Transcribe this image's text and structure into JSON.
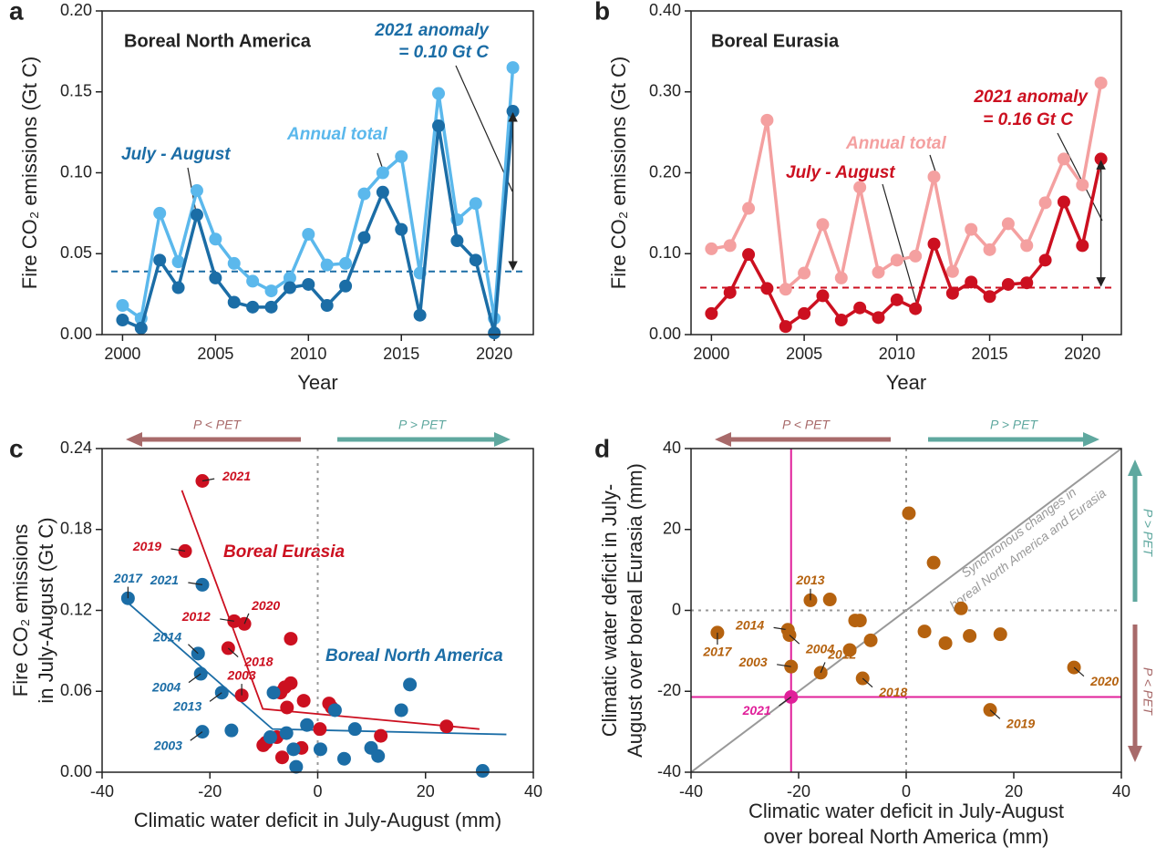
{
  "chart_data": [
    {
      "type": "line",
      "panel": "a",
      "title": "Boreal North America",
      "x": [
        2000,
        2001,
        2002,
        2003,
        2004,
        2005,
        2006,
        2007,
        2008,
        2009,
        2010,
        2011,
        2012,
        2013,
        2014,
        2015,
        2016,
        2017,
        2018,
        2019,
        2020,
        2021
      ],
      "xlim": [
        1998.9,
        2022.1
      ],
      "xticks": [
        2000,
        2005,
        2010,
        2015,
        2020
      ],
      "ylim": [
        0,
        0.2
      ],
      "yticks": [
        {
          "value": 0,
          "label": "0.00"
        },
        {
          "value": 0.05,
          "label": "0.05"
        },
        {
          "value": 0.1,
          "label": "0.10"
        },
        {
          "value": 0.15,
          "label": "0.15"
        },
        {
          "value": 0.2,
          "label": "0.20"
        }
      ],
      "xlabel": "Year",
      "ylabel": "Fire CO₂ emissions (Gt C)",
      "series": [
        {
          "name": "Annual total",
          "color": "#5bb8ec",
          "values": [
            0.018,
            0.01,
            0.075,
            0.045,
            0.089,
            0.059,
            0.044,
            0.033,
            0.027,
            0.035,
            0.062,
            0.043,
            0.044,
            0.087,
            0.1,
            0.11,
            0.038,
            0.149,
            0.071,
            0.081,
            0.01,
            0.165
          ]
        },
        {
          "name": "July - August",
          "color": "#1b6da6",
          "values": [
            0.009,
            0.004,
            0.046,
            0.029,
            0.074,
            0.035,
            0.02,
            0.017,
            0.017,
            0.029,
            0.031,
            0.018,
            0.03,
            0.06,
            0.088,
            0.065,
            0.012,
            0.129,
            0.058,
            0.046,
            0.001,
            0.138
          ]
        }
      ],
      "baseline": 0.039,
      "anomaly_label": [
        "2021 anomaly",
        "= 0.10 Gt C"
      ]
    },
    {
      "type": "line",
      "panel": "b",
      "title": "Boreal Eurasia",
      "x": [
        2000,
        2001,
        2002,
        2003,
        2004,
        2005,
        2006,
        2007,
        2008,
        2009,
        2010,
        2011,
        2012,
        2013,
        2014,
        2015,
        2016,
        2017,
        2018,
        2019,
        2020,
        2021
      ],
      "xlim": [
        1998.9,
        2022.1
      ],
      "xticks": [
        2000,
        2005,
        2010,
        2015,
        2020
      ],
      "ylim": [
        0,
        0.4
      ],
      "yticks": [
        {
          "value": 0,
          "label": "0.00"
        },
        {
          "value": 0.1,
          "label": "0.10"
        },
        {
          "value": 0.2,
          "label": "0.20"
        },
        {
          "value": 0.3,
          "label": "0.30"
        },
        {
          "value": 0.4,
          "label": "0.40"
        }
      ],
      "xlabel": "Year",
      "ylabel": "Fire CO₂ emissions (Gt C)",
      "series": [
        {
          "name": "Annual total",
          "color": "#f4a0a0",
          "values": [
            0.106,
            0.11,
            0.156,
            0.265,
            0.056,
            0.076,
            0.136,
            0.07,
            0.182,
            0.077,
            0.092,
            0.097,
            0.195,
            0.078,
            0.13,
            0.105,
            0.137,
            0.11,
            0.163,
            0.217,
            0.185,
            0.311
          ]
        },
        {
          "name": "July - August",
          "color": "#cc1020",
          "values": [
            0.026,
            0.052,
            0.099,
            0.057,
            0.01,
            0.026,
            0.048,
            0.018,
            0.033,
            0.021,
            0.043,
            0.032,
            0.112,
            0.051,
            0.065,
            0.047,
            0.062,
            0.064,
            0.092,
            0.164,
            0.11,
            0.217
          ]
        }
      ],
      "baseline": 0.058,
      "anomaly_label": [
        "2021 anomaly",
        "= 0.16 Gt C"
      ]
    },
    {
      "type": "scatter",
      "panel": "c",
      "xlim": [
        -40,
        40
      ],
      "xticks": [
        -40,
        -20,
        0,
        20,
        40
      ],
      "ylim": [
        0,
        0.24
      ],
      "yticks": [
        {
          "value": 0,
          "label": "0.00"
        },
        {
          "value": 0.06,
          "label": "0.06"
        },
        {
          "value": 0.12,
          "label": "0.12"
        },
        {
          "value": 0.18,
          "label": "0.18"
        },
        {
          "value": 0.24,
          "label": "0.24"
        }
      ],
      "xlabel": [
        "Climatic water deficit in July-August (mm)"
      ],
      "ylabel": [
        "Fire CO₂ emissions",
        "in July-August (Gt C)"
      ],
      "vline": 0,
      "region_labels": [
        "P < PET",
        "P > PET"
      ],
      "series": [
        {
          "name": "Boreal Eurasia",
          "color": "#cc1020",
          "x": [
            -21.4,
            -24.6,
            -15.5,
            -13.6,
            -16.6,
            -14.1,
            -5.0,
            -5.0,
            -6.1,
            -6.9,
            -5.7,
            -2.6,
            2.1,
            2.6,
            0.4,
            -7.6,
            -10.1,
            -6.6,
            -3.0,
            11.7,
            23.9,
            -9.6
          ],
          "values": [
            0.216,
            0.164,
            0.112,
            0.11,
            0.092,
            0.057,
            0.099,
            0.066,
            0.063,
            0.059,
            0.048,
            0.053,
            0.051,
            0.048,
            0.032,
            0.026,
            0.02,
            0.011,
            0.018,
            0.027,
            0.034,
            0.022
          ],
          "point_labels": [
            "2021",
            "2019",
            "2012",
            "2020",
            "2018",
            "2003",
            null,
            null,
            null,
            null,
            null,
            null,
            null,
            null,
            null,
            null,
            null,
            null,
            null,
            null,
            null,
            null
          ],
          "fit_x": [
            -25.2,
            -10.2,
            30
          ],
          "fit_y": [
            0.209,
            0.047,
            0.032
          ]
        },
        {
          "name": "Boreal North America",
          "color": "#1b6da6",
          "x": [
            -35.2,
            -21.4,
            -22.2,
            -21.7,
            -17.8,
            -21.4,
            -16.0,
            -8.2,
            -5.8,
            -4.5,
            -4.0,
            -2.0,
            0.5,
            3.2,
            4.9,
            6.9,
            9.9,
            11.2,
            15.5,
            17.1,
            30.6,
            -8.8
          ],
          "values": [
            0.129,
            0.139,
            0.088,
            0.073,
            0.059,
            0.03,
            0.031,
            0.059,
            0.029,
            0.017,
            0.004,
            0.035,
            0.017,
            0.046,
            0.01,
            0.032,
            0.018,
            0.012,
            0.046,
            0.065,
            0.001,
            0.026
          ],
          "point_labels": [
            "2017",
            "2021",
            "2014",
            "2004",
            "2013",
            "2003",
            null,
            null,
            null,
            null,
            null,
            null,
            null,
            null,
            null,
            null,
            null,
            null,
            null,
            null,
            null,
            null
          ],
          "fit_x": [
            -35.9,
            -8.4,
            35
          ],
          "fit_y": [
            0.128,
            0.032,
            0.028
          ]
        }
      ]
    },
    {
      "type": "scatter",
      "panel": "d",
      "xlim": [
        -40,
        40
      ],
      "xticks": [
        -40,
        -20,
        0,
        20,
        40
      ],
      "ylim": [
        -40,
        40
      ],
      "yticks": [
        -40,
        -20,
        0,
        20,
        40
      ],
      "xlabel": [
        "Climatic water deficit in July-August",
        "over boreal North America (mm)"
      ],
      "ylabel": [
        "Climatic water deficit in July-",
        "August over boreal Eurasia (mm)"
      ],
      "vline": 0,
      "hline": 0,
      "identity_line": true,
      "highlight_lines": true,
      "identity_label": [
        "Synchronous changes in",
        "boreal North America and Eurasia"
      ],
      "region_labels": [
        "P < PET",
        "P > PET"
      ],
      "series": [
        {
          "color": "#b5620f",
          "x": [
            -35.1,
            -22.0,
            -21.7,
            -21.4,
            -17.8,
            -15.9,
            -8.1,
            31.2,
            15.6,
            -14.2,
            -9.5,
            -8.6,
            -10.5,
            -6.6,
            0.5,
            3.4,
            5.1,
            7.3,
            10.2,
            11.8,
            17.5
          ],
          "values": [
            -5.5,
            -4.8,
            -6.1,
            -13.9,
            2.5,
            -15.4,
            -16.8,
            -14.1,
            -24.6,
            2.7,
            -2.5,
            -2.5,
            -9.8,
            -7.4,
            24.0,
            -5.2,
            11.8,
            -8.1,
            0.5,
            -6.3,
            -5.9
          ],
          "point_labels": [
            "2017",
            "2014",
            "2004",
            "2003",
            "2013",
            "2012",
            "2018",
            "2020",
            "2019",
            null,
            null,
            null,
            null,
            null,
            null,
            null,
            null,
            null,
            null,
            null,
            null
          ]
        },
        {
          "color": "#e0209a",
          "x": [
            -21.4
          ],
          "values": [
            -21.4
          ],
          "point_labels": [
            "2021"
          ]
        }
      ]
    }
  ]
}
